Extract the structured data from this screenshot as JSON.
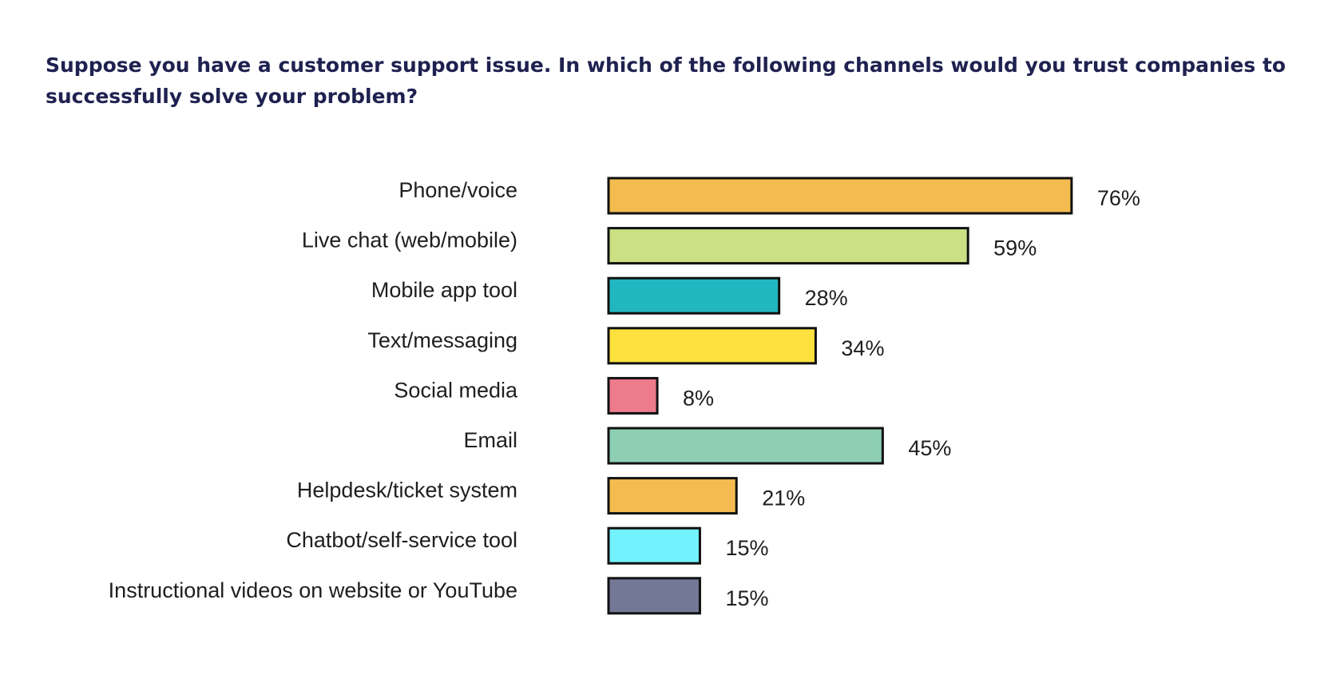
{
  "chart_data": {
    "type": "bar",
    "orientation": "horizontal",
    "title": "Suppose you have a customer support issue.  In which of the following channels would you trust companies to successfully solve your problem?",
    "xlabel": "",
    "ylabel": "",
    "xlim": [
      0,
      100
    ],
    "grid": false,
    "legend": "none",
    "categories": [
      "Phone/voice",
      "Live chat (web/mobile)",
      "Mobile app tool",
      "Text/messaging",
      "Social media",
      "Email",
      "Helpdesk/ticket system",
      "Chatbot/self-service tool",
      "Instructional videos on website or YouTube"
    ],
    "values": [
      76,
      59,
      28,
      34,
      8,
      45,
      21,
      15,
      15
    ],
    "value_labels": [
      "76%",
      "59%",
      "28%",
      "34%",
      "8%",
      "45%",
      "21%",
      "15%",
      "15%"
    ],
    "colors": [
      "#f4bc50",
      "#cbe083",
      "#21b7c0",
      "#fde13f",
      "#ee7b8c",
      "#8ecfb4",
      "#f4bc50",
      "#72f2fd",
      "#737896"
    ]
  }
}
